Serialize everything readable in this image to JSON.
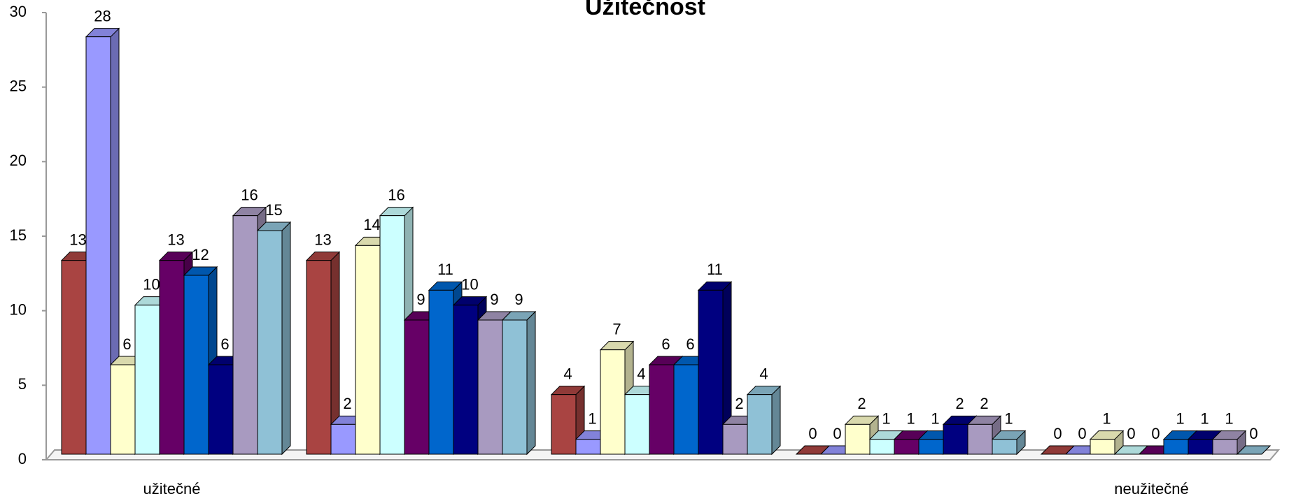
{
  "chart_data": {
    "type": "bar3d",
    "title": "Užitečnost",
    "categories": [
      "užitečné",
      null,
      null,
      null,
      "neužitečné"
    ],
    "series": [
      {
        "color": "#a94442",
        "values": [
          13,
          13,
          4,
          0,
          0
        ]
      },
      {
        "color": "#9999ff",
        "values": [
          28,
          2,
          1,
          0,
          0
        ]
      },
      {
        "color": "#ffffcc",
        "values": [
          6,
          14,
          7,
          2,
          1
        ]
      },
      {
        "color": "#ccffff",
        "values": [
          10,
          16,
          4,
          1,
          0
        ]
      },
      {
        "color": "#660066",
        "values": [
          13,
          9,
          6,
          1,
          0
        ]
      },
      {
        "color": "#0066cc",
        "values": [
          12,
          11,
          6,
          1,
          1
        ]
      },
      {
        "color": "#000080",
        "values": [
          6,
          10,
          11,
          2,
          1
        ]
      },
      {
        "color": "#a89ac0",
        "values": [
          16,
          9,
          2,
          2,
          1
        ]
      },
      {
        "color": "#8fc1d6",
        "values": [
          15,
          9,
          4,
          1,
          0
        ]
      }
    ],
    "ylim": [
      0,
      30
    ],
    "yticks": [
      0,
      5,
      10,
      15,
      20,
      25,
      30
    ]
  }
}
